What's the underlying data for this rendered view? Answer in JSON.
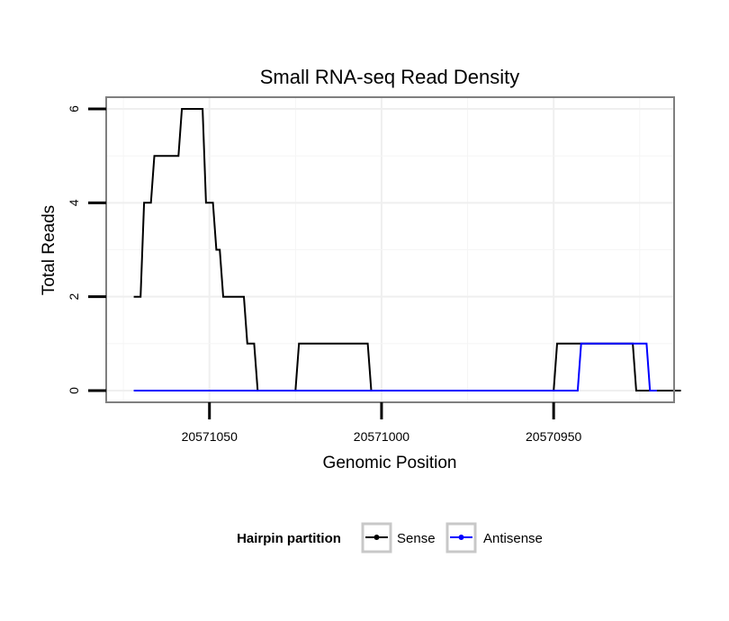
{
  "chart_data": {
    "type": "line",
    "title": "Small RNA-seq Read Density",
    "xlabel": "Genomic Position",
    "ylabel": "Total Reads",
    "xlim": [
      20571080,
      20570915
    ],
    "x_reversed": true,
    "ylim": [
      -0.25,
      6.25
    ],
    "xticks": [
      20571050,
      20571000,
      20570950
    ],
    "xtick_labels": [
      "20571050",
      "20571000",
      "20570950"
    ],
    "yticks": [
      0,
      2,
      4,
      6
    ],
    "ytick_labels": [
      "0",
      "2",
      "4",
      "6"
    ],
    "grid": true,
    "legend": {
      "title": "Hairpin partition",
      "position": "bottom"
    },
    "series": [
      {
        "name": "Sense",
        "color": "#000000",
        "x": [
          20571072,
          20571070,
          20571069,
          20571067,
          20571066,
          20571059,
          20571058,
          20571052,
          20571051,
          20571049,
          20571048,
          20571047,
          20571046,
          20571040,
          20571039,
          20571037,
          20571036,
          20571035,
          20571025,
          20571024,
          20571004,
          20571003,
          20570950,
          20570949,
          20570927,
          20570926,
          20570913
        ],
        "y": [
          2,
          2,
          4,
          4,
          5,
          5,
          6,
          6,
          4,
          4,
          3,
          3,
          2,
          2,
          1,
          1,
          0,
          0,
          0,
          1,
          1,
          0,
          0,
          1,
          1,
          0,
          0
        ]
      },
      {
        "name": "Antisense",
        "color": "#0000ff",
        "x": [
          20571072,
          20570943,
          20570942,
          20570923,
          20570922,
          20570920
        ],
        "y": [
          0,
          0,
          1,
          1,
          0,
          0
        ]
      }
    ]
  }
}
